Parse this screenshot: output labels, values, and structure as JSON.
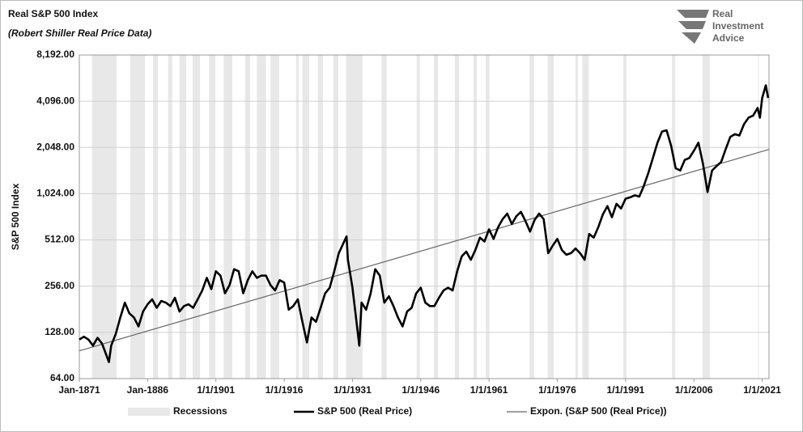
{
  "chart_data": {
    "type": "line",
    "title": "Real S&P 500 Index",
    "subtitle": "(Robert Shiller Real Price Data)",
    "y_label": "S&P 500 Index",
    "logo": [
      "Real",
      "Investment",
      "Advice"
    ],
    "log_y": true,
    "grid": true,
    "xlim": [
      1871,
      2022.5
    ],
    "xticks": [
      {
        "value": 1871,
        "label": "Jan-1871"
      },
      {
        "value": 1886,
        "label": "Jan-1886"
      },
      {
        "value": 1901,
        "label": "1/1/1901"
      },
      {
        "value": 1916,
        "label": "1/1/1916"
      },
      {
        "value": 1931,
        "label": "1/1/1931"
      },
      {
        "value": 1946,
        "label": "1/1/1946"
      },
      {
        "value": 1961,
        "label": "1/1/1961"
      },
      {
        "value": 1976,
        "label": "1/1/1976"
      },
      {
        "value": 1991,
        "label": "1/1/1991"
      },
      {
        "value": 2006,
        "label": "1/1/2006"
      },
      {
        "value": 2021,
        "label": "1/1/2021"
      }
    ],
    "ylim": [
      64,
      8192
    ],
    "yticks": [
      {
        "value": 64,
        "label": "64.00"
      },
      {
        "value": 128,
        "label": "128.00"
      },
      {
        "value": 256,
        "label": "256.00"
      },
      {
        "value": 512,
        "label": "512.00"
      },
      {
        "value": 1024,
        "label": "1,024.00"
      },
      {
        "value": 2048,
        "label": "2,048.00"
      },
      {
        "value": 4096,
        "label": "4,096.00"
      },
      {
        "value": 8192,
        "label": "8,192.00"
      }
    ],
    "recessions": {
      "name": "Recessions",
      "color": "#e8e8e8",
      "starts": [
        1873.8,
        1882.2,
        1887.2,
        1890.5,
        1893.0,
        1895.9,
        1899.5,
        1902.7,
        1907.4,
        1910.0,
        1913.0,
        1918.6,
        1920.0,
        1923.4,
        1926.8,
        1929.6,
        1937.4,
        1945.1,
        1948.9,
        1953.5,
        1957.6,
        1960.3,
        1969.9,
        1973.9,
        1980.0,
        1981.5,
        1990.5,
        2001.2,
        2007.9,
        2020.1
      ],
      "ends": [
        1879.2,
        1885.4,
        1888.3,
        1891.4,
        1894.5,
        1897.5,
        1900.9,
        1904.6,
        1908.5,
        1912.0,
        1914.9,
        1919.2,
        1921.5,
        1924.5,
        1927.9,
        1933.2,
        1938.5,
        1945.8,
        1949.8,
        1954.4,
        1958.3,
        1961.1,
        1970.9,
        1975.2,
        1980.5,
        1982.9,
        1991.2,
        2001.9,
        2009.5,
        2020.3
      ]
    },
    "series": [
      {
        "name": "S&P 500 (Real Price)",
        "color": "#000000",
        "width": 2.6,
        "x": [
          1871,
          1872,
          1873,
          1874,
          1875,
          1876,
          1877,
          1877.5,
          1878,
          1879,
          1880,
          1881,
          1882,
          1883,
          1884,
          1885,
          1886,
          1887,
          1888,
          1889,
          1890,
          1891,
          1892,
          1893,
          1894,
          1895,
          1896,
          1897,
          1898,
          1899,
          1900,
          1901,
          1902,
          1903,
          1904,
          1905,
          1906,
          1907,
          1908,
          1909,
          1910,
          1911,
          1912,
          1913,
          1914,
          1915,
          1916,
          1917,
          1918,
          1919,
          1920,
          1921,
          1922,
          1923,
          1924,
          1925,
          1926,
          1927,
          1928,
          1929.7,
          1930,
          1931,
          1932.5,
          1933,
          1934,
          1935,
          1936,
          1937,
          1938,
          1939,
          1940,
          1941,
          1942,
          1943,
          1944,
          1945,
          1946,
          1947,
          1948,
          1949,
          1950,
          1951,
          1952,
          1953,
          1954,
          1955,
          1956,
          1957,
          1958,
          1959,
          1960,
          1961,
          1962,
          1963,
          1964,
          1965,
          1966,
          1967,
          1968,
          1969,
          1970,
          1971,
          1972,
          1973,
          1974,
          1975,
          1976,
          1977,
          1978,
          1979,
          1980,
          1981,
          1982,
          1983,
          1984,
          1985,
          1986,
          1987,
          1988,
          1989,
          1990,
          1991,
          1992,
          1993,
          1994,
          1995,
          1996,
          1997,
          1998,
          1999,
          2000,
          2001,
          2002,
          2003,
          2004,
          2005,
          2006,
          2007,
          2008,
          2009,
          2010,
          2011,
          2012,
          2013,
          2014,
          2015,
          2016,
          2017,
          2018,
          2019,
          2020,
          2020.5,
          2021,
          2021.8,
          2022.3
        ],
        "values": [
          115,
          120,
          115,
          105,
          118,
          108,
          90,
          82,
          105,
          125,
          160,
          200,
          170,
          160,
          140,
          175,
          195,
          210,
          185,
          205,
          200,
          190,
          215,
          175,
          190,
          195,
          185,
          210,
          240,
          290,
          245,
          320,
          300,
          230,
          260,
          330,
          320,
          230,
          280,
          320,
          290,
          300,
          300,
          260,
          240,
          280,
          270,
          180,
          190,
          210,
          150,
          110,
          160,
          150,
          185,
          230,
          250,
          320,
          420,
          540,
          380,
          250,
          105,
          200,
          180,
          230,
          330,
          300,
          200,
          220,
          190,
          160,
          140,
          175,
          185,
          230,
          250,
          200,
          190,
          190,
          215,
          240,
          250,
          240,
          320,
          400,
          430,
          380,
          440,
          530,
          500,
          600,
          520,
          620,
          700,
          760,
          650,
          730,
          780,
          680,
          580,
          690,
          760,
          700,
          420,
          470,
          520,
          440,
          410,
          420,
          450,
          420,
          380,
          560,
          530,
          620,
          750,
          850,
          720,
          880,
          820,
          950,
          970,
          1000,
          980,
          1150,
          1400,
          1750,
          2200,
          2600,
          2650,
          2100,
          1500,
          1450,
          1700,
          1750,
          1950,
          2200,
          1600,
          1050,
          1450,
          1550,
          1650,
          2000,
          2400,
          2500,
          2450,
          2900,
          3200,
          3300,
          3700,
          3200,
          4300,
          5200,
          4300
        ]
      },
      {
        "name": "Expon. (S&P 500 (Real Price))",
        "color": "#666666",
        "width": 1.2,
        "x": [
          1871,
          2022.5
        ],
        "values": [
          97,
          1990
        ]
      }
    ]
  }
}
